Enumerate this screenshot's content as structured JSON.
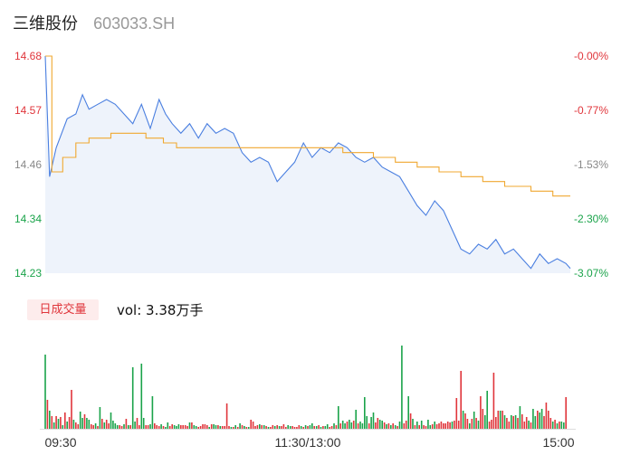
{
  "header": {
    "name": "三维股份",
    "code": "603033.SH"
  },
  "volume": {
    "tag_label": "日成交量",
    "label": "vol: 3.38万手"
  },
  "colors": {
    "price_line": "#4a7fe0",
    "avg_line": "#f0a830",
    "up": "#e0353b",
    "down": "#1aa34a",
    "area": "#eef3fb"
  },
  "chart_data": {
    "type": "line",
    "title": "",
    "y_ticks_left": [
      "14.68",
      "14.57",
      "14.46",
      "14.34",
      "14.23"
    ],
    "y_ticks_right": [
      "-0.00%",
      "-0.77%",
      "-1.53%",
      "-2.30%",
      "-3.07%"
    ],
    "x_ticks": [
      "09:30",
      "11:30/13:00",
      "15:00"
    ],
    "ylim": [
      14.23,
      14.68
    ],
    "sessions": 241,
    "price": [
      [
        0,
        14.68
      ],
      [
        2,
        14.43
      ],
      [
        5,
        14.49
      ],
      [
        10,
        14.55
      ],
      [
        14,
        14.56
      ],
      [
        17,
        14.6
      ],
      [
        20,
        14.57
      ],
      [
        24,
        14.58
      ],
      [
        28,
        14.59
      ],
      [
        32,
        14.58
      ],
      [
        36,
        14.56
      ],
      [
        40,
        14.54
      ],
      [
        44,
        14.58
      ],
      [
        48,
        14.53
      ],
      [
        52,
        14.59
      ],
      [
        55,
        14.56
      ],
      [
        58,
        14.54
      ],
      [
        62,
        14.52
      ],
      [
        66,
        14.54
      ],
      [
        70,
        14.51
      ],
      [
        74,
        14.54
      ],
      [
        78,
        14.52
      ],
      [
        82,
        14.53
      ],
      [
        86,
        14.52
      ],
      [
        90,
        14.48
      ],
      [
        94,
        14.46
      ],
      [
        98,
        14.47
      ],
      [
        102,
        14.46
      ],
      [
        106,
        14.42
      ],
      [
        110,
        14.44
      ],
      [
        114,
        14.46
      ],
      [
        118,
        14.5
      ],
      [
        122,
        14.47
      ],
      [
        126,
        14.49
      ],
      [
        130,
        14.48
      ],
      [
        134,
        14.5
      ],
      [
        138,
        14.49
      ],
      [
        142,
        14.47
      ],
      [
        146,
        14.46
      ],
      [
        150,
        14.47
      ],
      [
        154,
        14.45
      ],
      [
        158,
        14.44
      ],
      [
        162,
        14.43
      ],
      [
        166,
        14.4
      ],
      [
        170,
        14.37
      ],
      [
        174,
        14.35
      ],
      [
        178,
        14.38
      ],
      [
        182,
        14.36
      ],
      [
        186,
        14.32
      ],
      [
        190,
        14.28
      ],
      [
        194,
        14.27
      ],
      [
        198,
        14.29
      ],
      [
        202,
        14.28
      ],
      [
        206,
        14.3
      ],
      [
        210,
        14.27
      ],
      [
        214,
        14.28
      ],
      [
        218,
        14.26
      ],
      [
        222,
        14.24
      ],
      [
        226,
        14.27
      ],
      [
        230,
        14.25
      ],
      [
        234,
        14.26
      ],
      [
        238,
        14.25
      ],
      [
        240,
        14.24
      ]
    ],
    "avg": [
      [
        0,
        14.68
      ],
      [
        3,
        14.44
      ],
      [
        8,
        14.47
      ],
      [
        14,
        14.5
      ],
      [
        20,
        14.51
      ],
      [
        30,
        14.52
      ],
      [
        40,
        14.52
      ],
      [
        46,
        14.51
      ],
      [
        54,
        14.5
      ],
      [
        60,
        14.49
      ],
      [
        70,
        14.49
      ],
      [
        90,
        14.49
      ],
      [
        110,
        14.49
      ],
      [
        130,
        14.49
      ],
      [
        136,
        14.48
      ],
      [
        150,
        14.47
      ],
      [
        160,
        14.46
      ],
      [
        170,
        14.45
      ],
      [
        180,
        14.44
      ],
      [
        190,
        14.43
      ],
      [
        200,
        14.42
      ],
      [
        210,
        14.41
      ],
      [
        222,
        14.4
      ],
      [
        232,
        14.39
      ],
      [
        240,
        14.39
      ]
    ],
    "volume": [
      [
        0,
        0.82,
        "down"
      ],
      [
        1,
        0.32,
        "up"
      ],
      [
        2,
        0.2,
        "down"
      ],
      [
        3,
        0.14,
        "up"
      ],
      [
        4,
        0.07,
        "down"
      ],
      [
        5,
        0.14,
        "up"
      ],
      [
        6,
        0.11,
        "down"
      ],
      [
        7,
        0.13,
        "up"
      ],
      [
        8,
        0.04,
        "down"
      ],
      [
        9,
        0.18,
        "up"
      ],
      [
        10,
        0.08,
        "down"
      ],
      [
        11,
        0.13,
        "up"
      ],
      [
        12,
        0.43,
        "up"
      ],
      [
        13,
        0.1,
        "down"
      ],
      [
        14,
        0.07,
        "up"
      ],
      [
        15,
        0.05,
        "up"
      ],
      [
        16,
        0.19,
        "down"
      ],
      [
        17,
        0.12,
        "down"
      ],
      [
        18,
        0.16,
        "up"
      ],
      [
        19,
        0.12,
        "down"
      ],
      [
        20,
        0.1,
        "down"
      ],
      [
        21,
        0.05,
        "up"
      ],
      [
        22,
        0.04,
        "up"
      ],
      [
        23,
        0.06,
        "down"
      ],
      [
        24,
        0.03,
        "up"
      ],
      [
        25,
        0.24,
        "down"
      ],
      [
        26,
        0.11,
        "up"
      ],
      [
        27,
        0.07,
        "down"
      ],
      [
        28,
        0.1,
        "up"
      ],
      [
        29,
        0.06,
        "up"
      ],
      [
        30,
        0.18,
        "down"
      ],
      [
        31,
        0.09,
        "down"
      ],
      [
        32,
        0.06,
        "down"
      ],
      [
        33,
        0.04,
        "down"
      ],
      [
        34,
        0.04,
        "up"
      ],
      [
        35,
        0.03,
        "up"
      ],
      [
        36,
        0.05,
        "down"
      ],
      [
        37,
        0.11,
        "up"
      ],
      [
        38,
        0.04,
        "down"
      ],
      [
        39,
        0.04,
        "up"
      ],
      [
        40,
        0.68,
        "down"
      ],
      [
        41,
        0.08,
        "down"
      ],
      [
        42,
        0.12,
        "up"
      ],
      [
        43,
        0.04,
        "up"
      ],
      [
        44,
        0.72,
        "down"
      ],
      [
        45,
        0.12,
        "down"
      ],
      [
        46,
        0.04,
        "up"
      ],
      [
        47,
        0.04,
        "up"
      ],
      [
        48,
        0.05,
        "down"
      ],
      [
        49,
        0.36,
        "down"
      ],
      [
        50,
        0.06,
        "up"
      ],
      [
        51,
        0.04,
        "up"
      ],
      [
        52,
        0.03,
        "up"
      ],
      [
        53,
        0.05,
        "down"
      ],
      [
        54,
        0.03,
        "up"
      ],
      [
        55,
        0.02,
        "down"
      ],
      [
        56,
        0.07,
        "down"
      ],
      [
        57,
        0.03,
        "up"
      ],
      [
        58,
        0.05,
        "up"
      ],
      [
        59,
        0.04,
        "down"
      ],
      [
        60,
        0.03,
        "down"
      ],
      [
        61,
        0.05,
        "down"
      ],
      [
        62,
        0.04,
        "up"
      ],
      [
        63,
        0.04,
        "up"
      ],
      [
        64,
        0.04,
        "up"
      ],
      [
        65,
        0.03,
        "up"
      ],
      [
        66,
        0.07,
        "down"
      ],
      [
        67,
        0.07,
        "up"
      ],
      [
        68,
        0.04,
        "down"
      ],
      [
        69,
        0.03,
        "down"
      ],
      [
        70,
        0.02,
        "up"
      ],
      [
        71,
        0.03,
        "up"
      ],
      [
        72,
        0.05,
        "up"
      ],
      [
        73,
        0.05,
        "up"
      ],
      [
        74,
        0.04,
        "up"
      ],
      [
        75,
        0.02,
        "down"
      ],
      [
        76,
        0.05,
        "up"
      ],
      [
        77,
        0.05,
        "down"
      ],
      [
        78,
        0.04,
        "down"
      ],
      [
        79,
        0.04,
        "up"
      ],
      [
        80,
        0.03,
        "down"
      ],
      [
        81,
        0.03,
        "up"
      ],
      [
        82,
        0.03,
        "up"
      ],
      [
        83,
        0.28,
        "up"
      ],
      [
        84,
        0.03,
        "up"
      ],
      [
        85,
        0.02,
        "down"
      ],
      [
        86,
        0.02,
        "up"
      ],
      [
        87,
        0.04,
        "down"
      ],
      [
        88,
        0.02,
        "up"
      ],
      [
        89,
        0.06,
        "down"
      ],
      [
        90,
        0.04,
        "up"
      ],
      [
        91,
        0.03,
        "down"
      ],
      [
        92,
        0.02,
        "up"
      ],
      [
        93,
        0.02,
        "down"
      ],
      [
        94,
        0.1,
        "up"
      ],
      [
        95,
        0.08,
        "up"
      ],
      [
        96,
        0.03,
        "up"
      ],
      [
        97,
        0.04,
        "up"
      ],
      [
        98,
        0.05,
        "down"
      ],
      [
        99,
        0.04,
        "up"
      ],
      [
        100,
        0.04,
        "down"
      ],
      [
        101,
        0.03,
        "up"
      ],
      [
        102,
        0.02,
        "down"
      ],
      [
        103,
        0.02,
        "up"
      ],
      [
        104,
        0.04,
        "up"
      ],
      [
        105,
        0.03,
        "down"
      ],
      [
        106,
        0.04,
        "up"
      ],
      [
        107,
        0.03,
        "down"
      ],
      [
        108,
        0.03,
        "up"
      ],
      [
        109,
        0.05,
        "up"
      ],
      [
        110,
        0.02,
        "up"
      ],
      [
        111,
        0.04,
        "down"
      ],
      [
        112,
        0.03,
        "down"
      ],
      [
        113,
        0.03,
        "up"
      ],
      [
        114,
        0.02,
        "up"
      ],
      [
        115,
        0.02,
        "up"
      ],
      [
        116,
        0.04,
        "up"
      ],
      [
        117,
        0.03,
        "down"
      ],
      [
        118,
        0.02,
        "up"
      ],
      [
        119,
        0.04,
        "down"
      ],
      [
        120,
        0.03,
        "up"
      ],
      [
        121,
        0.04,
        "down"
      ],
      [
        122,
        0.06,
        "down"
      ],
      [
        123,
        0.03,
        "up"
      ],
      [
        124,
        0.03,
        "down"
      ],
      [
        125,
        0.04,
        "up"
      ],
      [
        126,
        0.02,
        "down"
      ],
      [
        127,
        0.03,
        "up"
      ],
      [
        128,
        0.03,
        "down"
      ],
      [
        129,
        0.05,
        "down"
      ],
      [
        130,
        0.02,
        "up"
      ],
      [
        131,
        0.03,
        "up"
      ],
      [
        132,
        0.06,
        "down"
      ],
      [
        133,
        0.04,
        "up"
      ],
      [
        134,
        0.25,
        "down"
      ],
      [
        135,
        0.06,
        "up"
      ],
      [
        136,
        0.09,
        "down"
      ],
      [
        137,
        0.06,
        "down"
      ],
      [
        138,
        0.08,
        "up"
      ],
      [
        139,
        0.1,
        "down"
      ],
      [
        140,
        0.07,
        "down"
      ],
      [
        141,
        0.09,
        "up"
      ],
      [
        142,
        0.21,
        "down"
      ],
      [
        143,
        0.06,
        "up"
      ],
      [
        144,
        0.08,
        "down"
      ],
      [
        145,
        0.06,
        "down"
      ],
      [
        146,
        0.35,
        "down"
      ],
      [
        147,
        0.14,
        "down"
      ],
      [
        148,
        0.06,
        "up"
      ],
      [
        149,
        0.13,
        "down"
      ],
      [
        150,
        0.18,
        "down"
      ],
      [
        151,
        0.07,
        "up"
      ],
      [
        152,
        0.12,
        "up"
      ],
      [
        153,
        0.1,
        "down"
      ],
      [
        154,
        0.09,
        "down"
      ],
      [
        155,
        0.07,
        "up"
      ],
      [
        156,
        0.05,
        "down"
      ],
      [
        157,
        0.06,
        "up"
      ],
      [
        158,
        0.04,
        "down"
      ],
      [
        159,
        0.06,
        "up"
      ],
      [
        160,
        0.04,
        "down"
      ],
      [
        161,
        0.03,
        "up"
      ],
      [
        162,
        0.08,
        "down"
      ],
      [
        163,
        0.92,
        "down"
      ],
      [
        164,
        0.06,
        "up"
      ],
      [
        165,
        0.09,
        "up"
      ],
      [
        166,
        0.36,
        "down"
      ],
      [
        167,
        0.17,
        "up"
      ],
      [
        168,
        0.11,
        "down"
      ],
      [
        169,
        0.04,
        "up"
      ],
      [
        170,
        0.08,
        "down"
      ],
      [
        171,
        0.04,
        "up"
      ],
      [
        172,
        0.09,
        "down"
      ],
      [
        173,
        0.04,
        "up"
      ],
      [
        174,
        0.03,
        "up"
      ],
      [
        175,
        0.1,
        "down"
      ],
      [
        176,
        0.04,
        "down"
      ],
      [
        177,
        0.05,
        "up"
      ],
      [
        178,
        0.08,
        "down"
      ],
      [
        179,
        0.05,
        "up"
      ],
      [
        180,
        0.06,
        "up"
      ],
      [
        181,
        0.08,
        "up"
      ],
      [
        182,
        0.06,
        "up"
      ],
      [
        183,
        0.06,
        "up"
      ],
      [
        184,
        0.08,
        "up"
      ],
      [
        185,
        0.07,
        "up"
      ],
      [
        186,
        0.08,
        "down"
      ],
      [
        187,
        0.09,
        "up"
      ],
      [
        188,
        0.34,
        "up"
      ],
      [
        189,
        0.09,
        "up"
      ],
      [
        190,
        0.64,
        "up"
      ],
      [
        191,
        0.2,
        "down"
      ],
      [
        192,
        0.17,
        "up"
      ],
      [
        193,
        0.11,
        "up"
      ],
      [
        194,
        0.06,
        "down"
      ],
      [
        195,
        0.11,
        "up"
      ],
      [
        196,
        0.19,
        "down"
      ],
      [
        197,
        0.12,
        "up"
      ],
      [
        198,
        0.09,
        "down"
      ],
      [
        199,
        0.36,
        "up"
      ],
      [
        200,
        0.22,
        "up"
      ],
      [
        201,
        0.15,
        "down"
      ],
      [
        202,
        0.42,
        "down"
      ],
      [
        203,
        0.08,
        "up"
      ],
      [
        204,
        0.1,
        "up"
      ],
      [
        205,
        0.62,
        "up"
      ],
      [
        206,
        0.13,
        "up"
      ],
      [
        207,
        0.2,
        "up"
      ],
      [
        208,
        0.2,
        "down"
      ],
      [
        209,
        0.2,
        "up"
      ],
      [
        210,
        0.15,
        "down"
      ],
      [
        211,
        0.12,
        "up"
      ],
      [
        212,
        0.08,
        "up"
      ],
      [
        213,
        0.15,
        "down"
      ],
      [
        214,
        0.14,
        "up"
      ],
      [
        215,
        0.15,
        "down"
      ],
      [
        216,
        0.12,
        "up"
      ],
      [
        217,
        0.25,
        "down"
      ],
      [
        218,
        0.16,
        "up"
      ],
      [
        219,
        0.08,
        "up"
      ],
      [
        220,
        0.13,
        "up"
      ],
      [
        221,
        0.09,
        "down"
      ],
      [
        222,
        0.07,
        "up"
      ],
      [
        223,
        0.22,
        "down"
      ],
      [
        224,
        0.14,
        "down"
      ],
      [
        225,
        0.2,
        "up"
      ],
      [
        226,
        0.18,
        "down"
      ],
      [
        227,
        0.22,
        "down"
      ],
      [
        228,
        0.14,
        "up"
      ],
      [
        229,
        0.29,
        "up"
      ],
      [
        230,
        0.2,
        "up"
      ],
      [
        231,
        0.12,
        "up"
      ],
      [
        232,
        0.08,
        "down"
      ],
      [
        233,
        0.1,
        "up"
      ],
      [
        234,
        0.06,
        "down"
      ],
      [
        235,
        0.08,
        "up"
      ],
      [
        236,
        0.08,
        "down"
      ],
      [
        237,
        0.07,
        "down"
      ],
      [
        238,
        0.35,
        "up"
      ]
    ]
  }
}
